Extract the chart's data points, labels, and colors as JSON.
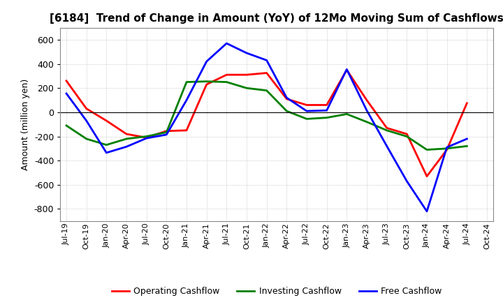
{
  "title": "[6184]  Trend of Change in Amount (YoY) of 12Mo Moving Sum of Cashflows",
  "ylabel": "Amount (million yen)",
  "x_labels": [
    "Jul-19",
    "Oct-19",
    "Jan-20",
    "Apr-20",
    "Jul-20",
    "Oct-20",
    "Jan-21",
    "Apr-21",
    "Jul-21",
    "Oct-21",
    "Jan-22",
    "Apr-22",
    "Jul-22",
    "Oct-22",
    "Jan-23",
    "Apr-23",
    "Jul-23",
    "Oct-23",
    "Jan-24",
    "Apr-24",
    "Jul-24",
    "Oct-24"
  ],
  "operating": [
    260,
    30,
    -70,
    -180,
    -210,
    -155,
    -150,
    230,
    310,
    310,
    325,
    110,
    60,
    60,
    350,
    100,
    -130,
    -180,
    -530,
    -310,
    75,
    null
  ],
  "investing": [
    -110,
    -220,
    -270,
    -220,
    -200,
    -165,
    250,
    255,
    250,
    200,
    180,
    10,
    -55,
    -45,
    -15,
    -80,
    -150,
    -200,
    -310,
    -300,
    -280,
    null
  ],
  "free": [
    155,
    -70,
    -335,
    -285,
    -215,
    -185,
    100,
    420,
    570,
    490,
    430,
    120,
    10,
    15,
    355,
    15,
    -280,
    -570,
    -820,
    -290,
    -220,
    null
  ],
  "operating_color": "#ff0000",
  "investing_color": "#008000",
  "free_color": "#0000ff",
  "ylim": [
    -900,
    700
  ],
  "yticks": [
    -800,
    -600,
    -400,
    -200,
    0,
    200,
    400,
    600
  ],
  "background_color": "#ffffff",
  "grid_color": "#aaaaaa",
  "title_fontsize": 11,
  "axis_fontsize": 9,
  "legend_fontsize": 9,
  "linewidth": 2.0
}
